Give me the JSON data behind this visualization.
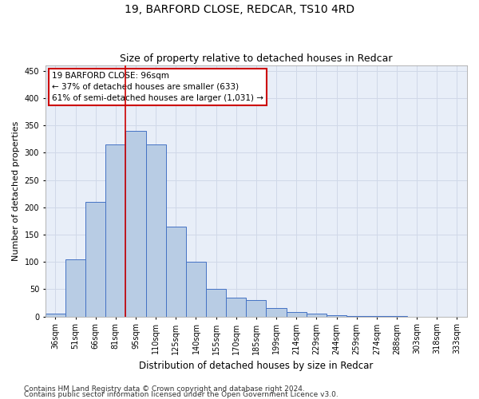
{
  "title1": "19, BARFORD CLOSE, REDCAR, TS10 4RD",
  "title2": "Size of property relative to detached houses in Redcar",
  "xlabel": "Distribution of detached houses by size in Redcar",
  "ylabel": "Number of detached properties",
  "bar_labels": [
    "36sqm",
    "51sqm",
    "66sqm",
    "81sqm",
    "95sqm",
    "110sqm",
    "125sqm",
    "140sqm",
    "155sqm",
    "170sqm",
    "185sqm",
    "199sqm",
    "214sqm",
    "229sqm",
    "244sqm",
    "259sqm",
    "274sqm",
    "288sqm",
    "303sqm",
    "318sqm",
    "333sqm"
  ],
  "bar_values": [
    5,
    105,
    210,
    315,
    340,
    315,
    165,
    100,
    50,
    35,
    30,
    15,
    8,
    5,
    2,
    1,
    1,
    1,
    0,
    0,
    0
  ],
  "bar_color": "#b8cce4",
  "bar_edge_color": "#4472c4",
  "highlight_bar_index": 4,
  "highlight_line_color": "#cc0000",
  "annotation_box_text": "19 BARFORD CLOSE: 96sqm\n← 37% of detached houses are smaller (633)\n61% of semi-detached houses are larger (1,031) →",
  "annotation_box_color": "#cc0000",
  "annotation_box_fill": "#ffffff",
  "ylim": [
    0,
    460
  ],
  "yticks": [
    0,
    50,
    100,
    150,
    200,
    250,
    300,
    350,
    400,
    450
  ],
  "grid_color": "#d0d8e8",
  "background_color": "#e8eef8",
  "footer_line1": "Contains HM Land Registry data © Crown copyright and database right 2024.",
  "footer_line2": "Contains public sector information licensed under the Open Government Licence v3.0.",
  "title1_fontsize": 10,
  "title2_fontsize": 9,
  "xlabel_fontsize": 8.5,
  "ylabel_fontsize": 8,
  "tick_fontsize": 7,
  "annotation_fontsize": 7.5,
  "footer_fontsize": 6.5
}
